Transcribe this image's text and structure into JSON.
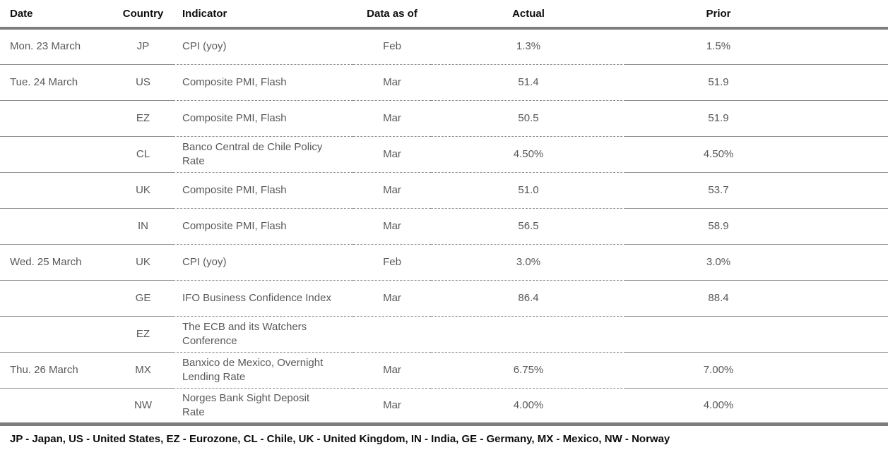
{
  "table": {
    "columns": [
      {
        "key": "date",
        "label": "Date"
      },
      {
        "key": "country",
        "label": "Country"
      },
      {
        "key": "indicator",
        "label": "Indicator"
      },
      {
        "key": "data_as_of",
        "label": "Data as of"
      },
      {
        "key": "actual",
        "label": "Actual"
      },
      {
        "key": "prior",
        "label": "Prior"
      }
    ],
    "rows": [
      {
        "date": "Mon. 23 March",
        "country": "JP",
        "indicator": "CPI (yoy)",
        "data_as_of": "Feb",
        "actual": "1.3%",
        "prior": "1.5%"
      },
      {
        "date": "Tue. 24 March",
        "country": "US",
        "indicator": "Composite PMI, Flash",
        "data_as_of": "Mar",
        "actual": "51.4",
        "prior": "51.9"
      },
      {
        "date": "",
        "country": "EZ",
        "indicator": "Composite PMI, Flash",
        "data_as_of": "Mar",
        "actual": "50.5",
        "prior": "51.9"
      },
      {
        "date": "",
        "country": "CL",
        "indicator": "Banco Central de Chile Policy Rate",
        "data_as_of": "Mar",
        "actual": "4.50%",
        "prior": "4.50%"
      },
      {
        "date": "",
        "country": "UK",
        "indicator": "Composite PMI, Flash",
        "data_as_of": "Mar",
        "actual": "51.0",
        "prior": "53.7"
      },
      {
        "date": "",
        "country": "IN",
        "indicator": "Composite PMI, Flash",
        "data_as_of": "Mar",
        "actual": "56.5",
        "prior": "58.9"
      },
      {
        "date": "Wed. 25 March",
        "country": "UK",
        "indicator": "CPI (yoy)",
        "data_as_of": "Feb",
        "actual": "3.0%",
        "prior": "3.0%"
      },
      {
        "date": "",
        "country": "GE",
        "indicator": "IFO Business Confidence Index",
        "data_as_of": "Mar",
        "actual": "86.4",
        "prior": "88.4"
      },
      {
        "date": "",
        "country": "EZ",
        "indicator": "The ECB and its Watchers Conference",
        "data_as_of": "",
        "actual": "",
        "prior": ""
      },
      {
        "date": "Thu. 26 March",
        "country": "MX",
        "indicator": "Banxico de Mexico, Overnight Lending Rate",
        "data_as_of": "Mar",
        "actual": "6.75%",
        "prior": "7.00%"
      },
      {
        "date": "",
        "country": "NW",
        "indicator": "Norges Bank Sight Deposit Rate",
        "data_as_of": "Mar",
        "actual": "4.00%",
        "prior": "4.00%"
      }
    ]
  },
  "footnote": "JP - Japan, US - United States, EZ - Eurozone, CL - Chile, UK - United Kingdom, IN - India, GE - Germany, MX - Mexico, NW - Norway",
  "colors": {
    "thick_rule": "#7d7d7d",
    "row_separator": "#8f8f8f",
    "body_text": "#595959",
    "header_text": "#0d0d0d"
  }
}
